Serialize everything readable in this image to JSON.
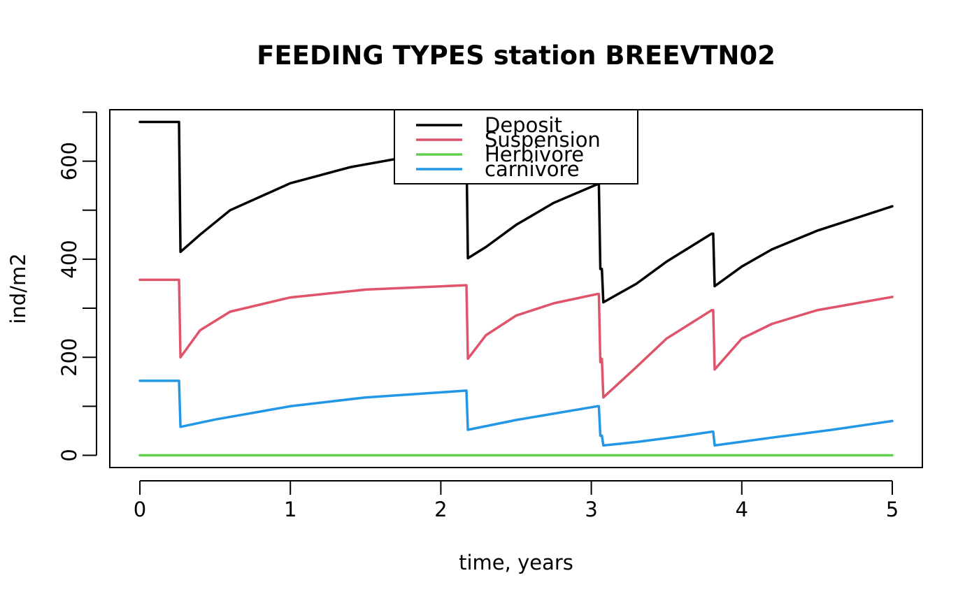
{
  "chart_data": {
    "type": "line",
    "title": "FEEDING TYPES station BREEVTN02",
    "xlabel": "time, years",
    "ylabel": "ind/m2",
    "xlim": [
      -0.2,
      5.2
    ],
    "ylim": [
      -25,
      705
    ],
    "xticks": [
      0,
      1,
      2,
      3,
      4,
      5
    ],
    "yticks": [
      0,
      200,
      400,
      600
    ],
    "yticks_minor": [
      100,
      300,
      500,
      700
    ],
    "grid": false,
    "legend_position": "top-center",
    "series": [
      {
        "name": "Deposit",
        "color": "#000000",
        "points": [
          [
            0,
            680
          ],
          [
            0.26,
            680
          ],
          [
            0.27,
            415
          ],
          [
            0.4,
            450
          ],
          [
            0.6,
            500
          ],
          [
            1.0,
            555
          ],
          [
            1.4,
            588
          ],
          [
            1.8,
            610
          ],
          [
            2.16,
            625
          ],
          [
            2.17,
            625
          ],
          [
            2.18,
            402
          ],
          [
            2.3,
            425
          ],
          [
            2.5,
            470
          ],
          [
            2.75,
            515
          ],
          [
            3.04,
            553
          ],
          [
            3.05,
            553
          ],
          [
            3.06,
            380
          ],
          [
            3.07,
            380
          ],
          [
            3.08,
            312
          ],
          [
            3.3,
            350
          ],
          [
            3.5,
            395
          ],
          [
            3.8,
            452
          ],
          [
            3.81,
            452
          ],
          [
            3.82,
            345
          ],
          [
            4.0,
            385
          ],
          [
            4.2,
            420
          ],
          [
            4.5,
            458
          ],
          [
            5.0,
            508
          ]
        ]
      },
      {
        "name": "Suspension",
        "color": "#DF536B",
        "points": [
          [
            0,
            358
          ],
          [
            0.26,
            358
          ],
          [
            0.27,
            200
          ],
          [
            0.4,
            255
          ],
          [
            0.6,
            293
          ],
          [
            1.0,
            322
          ],
          [
            1.5,
            338
          ],
          [
            2.17,
            347
          ],
          [
            2.18,
            197
          ],
          [
            2.3,
            245
          ],
          [
            2.5,
            285
          ],
          [
            2.75,
            310
          ],
          [
            3.04,
            329
          ],
          [
            3.05,
            329
          ],
          [
            3.06,
            190
          ],
          [
            3.07,
            197
          ],
          [
            3.08,
            118
          ],
          [
            3.3,
            180
          ],
          [
            3.5,
            238
          ],
          [
            3.8,
            296
          ],
          [
            3.81,
            296
          ],
          [
            3.82,
            175
          ],
          [
            4.0,
            238
          ],
          [
            4.2,
            268
          ],
          [
            4.5,
            296
          ],
          [
            5.0,
            323
          ]
        ]
      },
      {
        "name": "Herbivore",
        "color": "#61D04F",
        "points": [
          [
            0,
            0
          ],
          [
            5,
            0
          ]
        ]
      },
      {
        "name": "carnivore",
        "color": "#2297E6",
        "points": [
          [
            0,
            152
          ],
          [
            0.26,
            152
          ],
          [
            0.27,
            58
          ],
          [
            0.5,
            73
          ],
          [
            1.0,
            100
          ],
          [
            1.5,
            118
          ],
          [
            2.17,
            132
          ],
          [
            2.18,
            52
          ],
          [
            2.5,
            72
          ],
          [
            3.04,
            100
          ],
          [
            3.05,
            100
          ],
          [
            3.06,
            40
          ],
          [
            3.07,
            40
          ],
          [
            3.08,
            20
          ],
          [
            3.3,
            27
          ],
          [
            3.6,
            39
          ],
          [
            3.8,
            48
          ],
          [
            3.81,
            48
          ],
          [
            3.82,
            20
          ],
          [
            4.2,
            36
          ],
          [
            4.6,
            52
          ],
          [
            5.0,
            70
          ]
        ]
      }
    ]
  }
}
